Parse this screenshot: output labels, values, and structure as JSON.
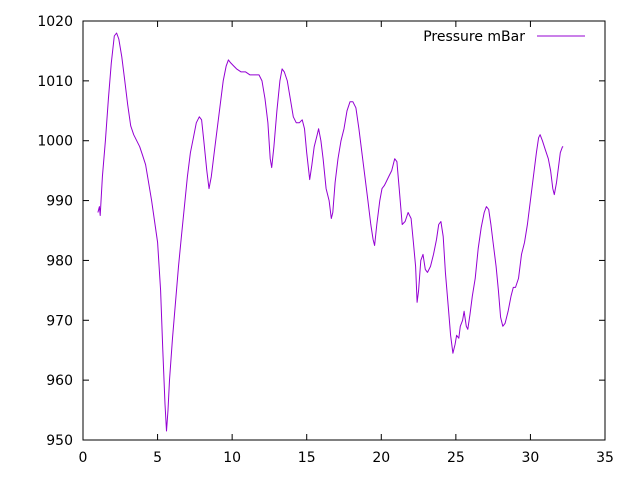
{
  "chart_data": {
    "type": "line",
    "title": "",
    "xlabel": "",
    "ylabel": "",
    "xlim": [
      0,
      35
    ],
    "ylim": [
      950,
      1020
    ],
    "xticks": [
      0,
      5,
      10,
      15,
      20,
      25,
      30,
      35
    ],
    "yticks": [
      950,
      960,
      970,
      980,
      990,
      1000,
      1010,
      1020
    ],
    "grid": false,
    "legend_position": "top-right",
    "series": [
      {
        "name": "Pressure mBar",
        "color": "#9400d3",
        "points": [
          [
            1.0,
            988
          ],
          [
            1.1,
            989
          ],
          [
            1.15,
            987.5
          ],
          [
            1.3,
            994
          ],
          [
            1.5,
            1000
          ],
          [
            1.7,
            1007
          ],
          [
            1.9,
            1013
          ],
          [
            2.1,
            1017.5
          ],
          [
            2.25,
            1018
          ],
          [
            2.4,
            1017
          ],
          [
            2.6,
            1014
          ],
          [
            2.8,
            1010
          ],
          [
            3.0,
            1006
          ],
          [
            3.2,
            1002.5
          ],
          [
            3.4,
            1001
          ],
          [
            3.6,
            1000
          ],
          [
            3.8,
            999
          ],
          [
            4.0,
            997.5
          ],
          [
            4.2,
            996
          ],
          [
            4.4,
            993
          ],
          [
            4.6,
            990
          ],
          [
            4.8,
            986.5
          ],
          [
            5.0,
            983
          ],
          [
            5.2,
            975
          ],
          [
            5.35,
            965
          ],
          [
            5.5,
            956
          ],
          [
            5.6,
            951.5
          ],
          [
            5.7,
            955
          ],
          [
            5.8,
            960
          ],
          [
            6.0,
            967
          ],
          [
            6.2,
            973
          ],
          [
            6.4,
            979
          ],
          [
            6.6,
            984
          ],
          [
            6.8,
            989
          ],
          [
            7.0,
            994
          ],
          [
            7.2,
            998
          ],
          [
            7.4,
            1000.5
          ],
          [
            7.6,
            1003
          ],
          [
            7.8,
            1004
          ],
          [
            7.95,
            1003.5
          ],
          [
            8.1,
            1000
          ],
          [
            8.3,
            995
          ],
          [
            8.45,
            992
          ],
          [
            8.6,
            994
          ],
          [
            8.8,
            998
          ],
          [
            9.0,
            1002
          ],
          [
            9.2,
            1006
          ],
          [
            9.4,
            1010
          ],
          [
            9.6,
            1012.5
          ],
          [
            9.75,
            1013.5
          ],
          [
            9.9,
            1013
          ],
          [
            10.1,
            1012.5
          ],
          [
            10.3,
            1012
          ],
          [
            10.6,
            1011.5
          ],
          [
            10.9,
            1011.5
          ],
          [
            11.2,
            1011
          ],
          [
            11.5,
            1011
          ],
          [
            11.8,
            1011
          ],
          [
            12.0,
            1010
          ],
          [
            12.2,
            1007
          ],
          [
            12.4,
            1003
          ],
          [
            12.55,
            997
          ],
          [
            12.65,
            995.5
          ],
          [
            12.8,
            999
          ],
          [
            13.0,
            1005
          ],
          [
            13.2,
            1010
          ],
          [
            13.35,
            1012
          ],
          [
            13.5,
            1011.5
          ],
          [
            13.7,
            1010
          ],
          [
            13.9,
            1007
          ],
          [
            14.1,
            1004
          ],
          [
            14.3,
            1003
          ],
          [
            14.5,
            1003
          ],
          [
            14.7,
            1003.5
          ],
          [
            14.85,
            1002
          ],
          [
            15.0,
            998
          ],
          [
            15.2,
            993.5
          ],
          [
            15.35,
            996
          ],
          [
            15.5,
            999
          ],
          [
            15.7,
            1001
          ],
          [
            15.8,
            1002
          ],
          [
            15.95,
            1000
          ],
          [
            16.1,
            997
          ],
          [
            16.3,
            992
          ],
          [
            16.5,
            990
          ],
          [
            16.65,
            987
          ],
          [
            16.75,
            988
          ],
          [
            16.9,
            993
          ],
          [
            17.1,
            997
          ],
          [
            17.3,
            1000
          ],
          [
            17.5,
            1002
          ],
          [
            17.7,
            1005
          ],
          [
            17.9,
            1006.5
          ],
          [
            18.1,
            1006.5
          ],
          [
            18.3,
            1005.5
          ],
          [
            18.5,
            1002
          ],
          [
            18.7,
            998
          ],
          [
            18.9,
            994
          ],
          [
            19.1,
            990
          ],
          [
            19.3,
            986
          ],
          [
            19.45,
            983.5
          ],
          [
            19.55,
            982.5
          ],
          [
            19.7,
            986
          ],
          [
            19.9,
            990
          ],
          [
            20.05,
            992
          ],
          [
            20.2,
            992.5
          ],
          [
            20.3,
            993
          ],
          [
            20.5,
            994
          ],
          [
            20.7,
            995
          ],
          [
            20.9,
            997
          ],
          [
            21.05,
            996.5
          ],
          [
            21.2,
            992
          ],
          [
            21.4,
            986
          ],
          [
            21.6,
            986.5
          ],
          [
            21.8,
            988
          ],
          [
            22.0,
            987
          ],
          [
            22.15,
            983
          ],
          [
            22.3,
            979
          ],
          [
            22.4,
            973
          ],
          [
            22.5,
            975
          ],
          [
            22.65,
            980
          ],
          [
            22.8,
            981
          ],
          [
            22.95,
            978.5
          ],
          [
            23.1,
            978
          ],
          [
            23.3,
            979
          ],
          [
            23.5,
            981
          ],
          [
            23.7,
            983.5
          ],
          [
            23.85,
            986
          ],
          [
            24.0,
            986.5
          ],
          [
            24.15,
            984
          ],
          [
            24.3,
            978
          ],
          [
            24.5,
            972
          ],
          [
            24.65,
            967.5
          ],
          [
            24.8,
            964.5
          ],
          [
            24.95,
            966
          ],
          [
            25.05,
            967.5
          ],
          [
            25.2,
            967
          ],
          [
            25.3,
            969
          ],
          [
            25.45,
            970
          ],
          [
            25.55,
            971.5
          ],
          [
            25.7,
            969
          ],
          [
            25.8,
            968.5
          ],
          [
            25.95,
            971
          ],
          [
            26.1,
            974
          ],
          [
            26.3,
            977
          ],
          [
            26.5,
            982
          ],
          [
            26.7,
            985.5
          ],
          [
            26.9,
            988
          ],
          [
            27.05,
            989
          ],
          [
            27.2,
            988.5
          ],
          [
            27.35,
            986
          ],
          [
            27.5,
            983
          ],
          [
            27.7,
            979
          ],
          [
            27.85,
            975
          ],
          [
            28.0,
            970.5
          ],
          [
            28.15,
            969
          ],
          [
            28.3,
            969.5
          ],
          [
            28.5,
            971.5
          ],
          [
            28.7,
            974
          ],
          [
            28.85,
            975.5
          ],
          [
            29.0,
            975.5
          ],
          [
            29.2,
            977
          ],
          [
            29.4,
            981
          ],
          [
            29.6,
            983
          ],
          [
            29.8,
            986
          ],
          [
            30.0,
            990
          ],
          [
            30.2,
            994
          ],
          [
            30.4,
            998
          ],
          [
            30.55,
            1000.5
          ],
          [
            30.65,
            1001
          ],
          [
            30.8,
            1000
          ],
          [
            31.0,
            998.5
          ],
          [
            31.2,
            997
          ],
          [
            31.35,
            995
          ],
          [
            31.5,
            992
          ],
          [
            31.6,
            991
          ],
          [
            31.75,
            993
          ],
          [
            31.9,
            996
          ],
          [
            32.0,
            998
          ],
          [
            32.15,
            999
          ],
          [
            32.2,
            999
          ]
        ]
      }
    ]
  }
}
